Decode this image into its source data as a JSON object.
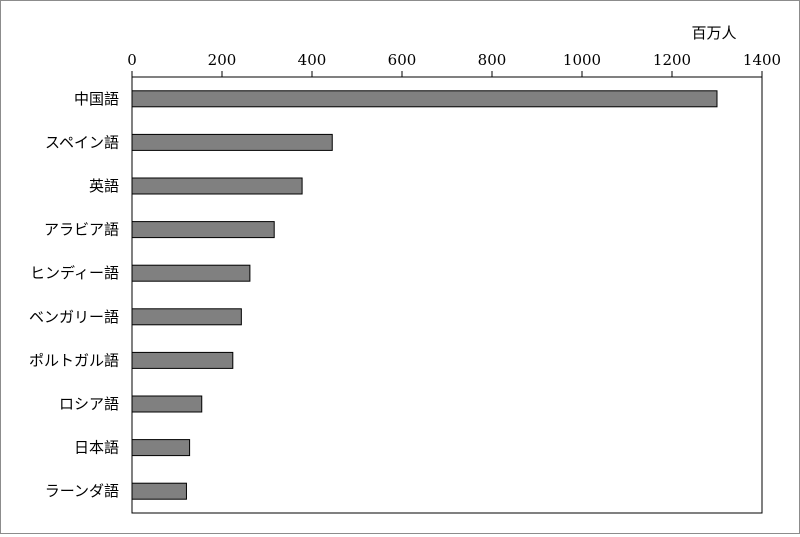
{
  "chart_data": {
    "type": "bar",
    "orientation": "horizontal",
    "title": "",
    "xlabel": "",
    "ylabel": "",
    "unit_label": "百万人",
    "xlim": [
      0,
      1400
    ],
    "x_ticks": [
      0,
      200,
      400,
      600,
      800,
      1000,
      1200,
      1400
    ],
    "categories": [
      "中国語",
      "スペイン語",
      "英語",
      "アラビア語",
      "ヒンディー語",
      "ベンガリー語",
      "ポルトガル語",
      "ロシア語",
      "日本語",
      "ラーンダ語"
    ],
    "values": [
      1300,
      445,
      378,
      316,
      262,
      243,
      224,
      155,
      128,
      121
    ],
    "x_axis_position": "top",
    "grid": false,
    "legend": "none",
    "bar_color": "#808080",
    "bar_edge_color": "#000000"
  }
}
